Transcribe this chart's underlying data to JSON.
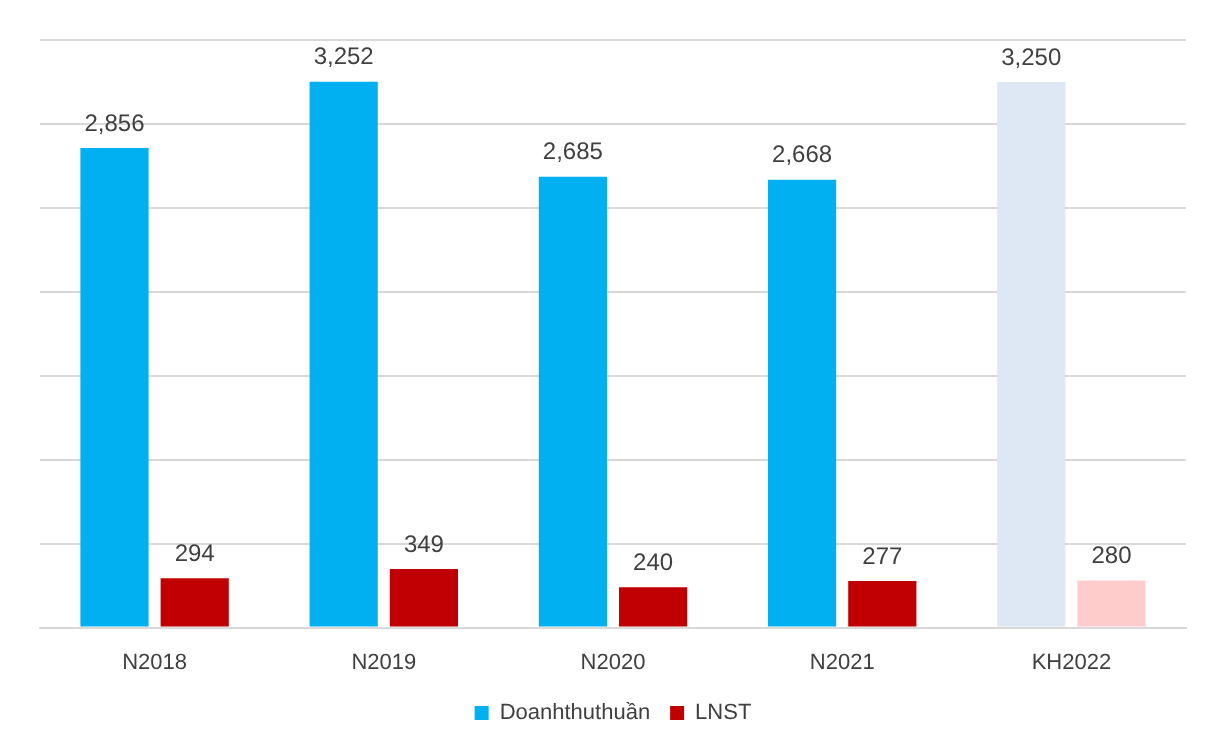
{
  "chart_data": {
    "type": "bar",
    "categories": [
      "N2018",
      "N2019",
      "N2020",
      "N2021",
      "KH2022"
    ],
    "series": [
      {
        "name": "Doanhthuthuần",
        "color": "#00b0f0",
        "colors": [
          "#00b0f0",
          "#00b0f0",
          "#00b0f0",
          "#00b0f0",
          "#dde8f4"
        ],
        "values": [
          2856,
          3252,
          2685,
          2668,
          3250
        ],
        "value_labels": [
          "2,856",
          "3,252",
          "2,685",
          "2,668",
          "3,250"
        ]
      },
      {
        "name": "LNST",
        "color": "#c00000",
        "colors": [
          "#c00000",
          "#c00000",
          "#c00000",
          "#c00000",
          "#ffcccc"
        ],
        "values": [
          294,
          349,
          240,
          277,
          280
        ],
        "value_labels": [
          "294",
          "349",
          "240",
          "277",
          "280"
        ]
      }
    ],
    "ylim": [
      0,
      3500
    ],
    "yticks": [
      {
        "value": 0,
        "label": null
      },
      {
        "value": 500,
        "label": null
      },
      {
        "value": 1000,
        "label": null
      },
      {
        "value": 1500,
        "label": null
      },
      {
        "value": 2000,
        "label": null
      },
      {
        "value": 2500,
        "label": null
      },
      {
        "value": 3000,
        "label": null
      },
      {
        "value": 3500,
        "label": null
      }
    ],
    "tick_labels": "x",
    "grid": "y",
    "legend": "bottom"
  }
}
